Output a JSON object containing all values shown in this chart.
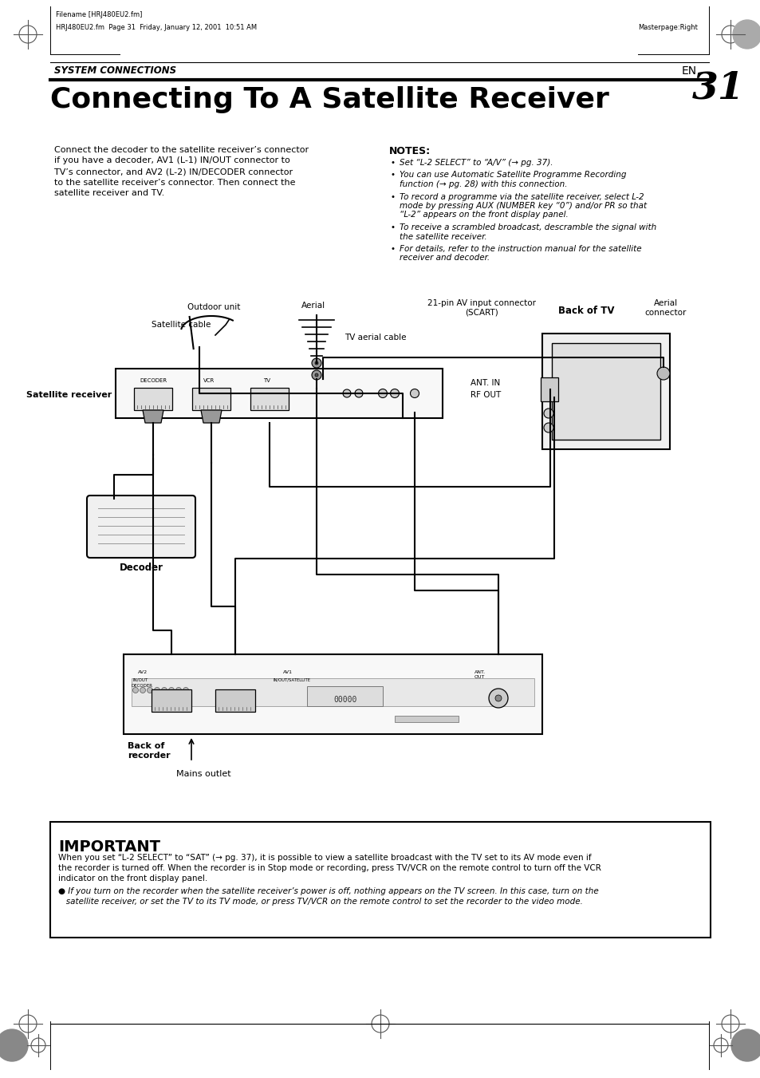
{
  "page_bg": "#ffffff",
  "header_filename": "Filename [HRJ480EU2.fm]",
  "header_filepath": "HRJ480EU2.fm  Page 31  Friday, January 12, 2001  10:51 AM",
  "header_masterpage": "Masterpage:Right",
  "section_label": "SYSTEM CONNECTIONS",
  "page_num": "31",
  "page_num_prefix": "EN",
  "main_title": "Connecting To A Satellite Receiver",
  "body_text": "Connect the decoder to the satellite receiver’s connector\nif you have a decoder, AV1 (L-1) IN/OUT connector to\nTV’s connector, and AV2 (L-2) IN/DECODER connector\nto the satellite receiver’s connector. Then connect the\nsatellite receiver and TV.",
  "notes_title": "NOTES:",
  "notes_items": [
    "Set “L-2 SELECT” to “A/V” (→ pg. 37).",
    "You can use Automatic Satellite Programme Recording\nfunction (→ pg. 28) with this connection.",
    "To record a programme via the satellite receiver, select L-2\nmode by pressing AUX (NUMBER key “0”) and/or PR so that\n“L-2” appears on the front display panel.",
    "To receive a scrambled broadcast, descramble the signal with\nthe satellite receiver.",
    "For details, refer to the instruction manual for the satellite\nreceiver and decoder."
  ],
  "diagram_labels": {
    "outdoor_unit": "Outdoor unit",
    "satellite_cable": "Satellite cable",
    "aerial": "Aerial",
    "tv_aerial_cable": "TV aerial cable",
    "scart_label": "21-pin AV input connector\n(SCART)",
    "back_of_tv": "Back of TV",
    "aerial_connector": "Aerial\nconnector",
    "satellite_receiver": "Satellite receiver",
    "ant_in": "ANT. IN",
    "rf_out": "RF OUT",
    "decoder": "Decoder",
    "back_of_recorder": "Back of\nrecorder",
    "mains_outlet": "Mains outlet"
  },
  "important_title": "IMPORTANT",
  "important_text1": "When you set “L-2 SELECT” to “SAT” (→ pg. 37), it is possible to view a satellite broadcast with the TV set to its AV mode even if\nthe recorder is turned off. When the recorder is in Stop mode or recording, press TV/VCR on the remote control to turn off the VCR\nindicator on the front display panel.",
  "important_text2": "If you turn on the recorder when the satellite receiver’s power is off, nothing appears on the TV screen. In this case, turn on the\nsatellite receiver, or set the TV to its TV mode, or press TV/VCR on the remote control to set the recorder to the video mode.",
  "important_bg": "#ffffff",
  "important_border": "#000000"
}
